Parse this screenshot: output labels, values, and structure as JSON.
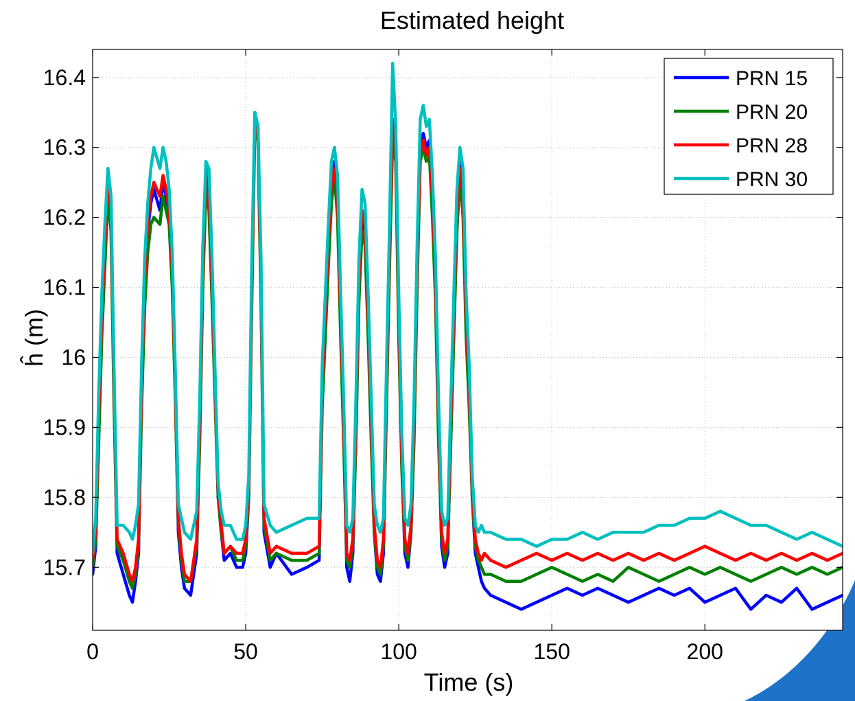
{
  "chart_data": {
    "type": "line",
    "title": "Estimated height",
    "xlabel": "Time (s)",
    "ylabel": "ĥ (m)",
    "xlim": [
      0,
      245
    ],
    "ylim": [
      15.61,
      16.44
    ],
    "xticks": [
      0,
      50,
      100,
      150,
      200
    ],
    "xtick_labels": [
      "0",
      "50",
      "100",
      "150",
      "200"
    ],
    "yticks": [
      15.7,
      15.8,
      15.9,
      16.0,
      16.1,
      16.2,
      16.3,
      16.4
    ],
    "ytick_labels": [
      "15.7",
      "15.8",
      "15.9",
      "16",
      "16.1",
      "16.2",
      "16.3",
      "16.4"
    ],
    "grid": true,
    "legend_position": "top-right",
    "x": [
      0,
      1,
      2,
      3,
      4,
      5,
      6,
      7,
      8,
      10,
      12,
      13,
      14,
      15,
      16,
      17,
      18,
      19,
      20,
      22,
      23,
      24,
      25,
      26,
      27,
      28,
      29,
      30,
      32,
      34,
      35,
      36,
      37,
      38,
      39,
      40,
      41,
      42,
      43,
      45,
      47,
      49,
      50,
      51,
      52,
      53,
      54,
      55,
      56,
      58,
      60,
      65,
      70,
      74,
      75,
      76,
      77,
      78,
      79,
      80,
      81,
      82,
      83,
      84,
      85,
      86,
      87,
      88,
      89,
      90,
      91,
      92,
      93,
      94,
      95,
      96,
      97,
      98,
      99,
      100,
      101,
      102,
      103,
      104,
      105,
      106,
      107,
      108,
      109,
      110,
      111,
      112,
      113,
      114,
      115,
      116,
      117,
      118,
      119,
      120,
      121,
      122,
      123,
      124,
      125,
      126,
      127,
      128,
      130,
      135,
      140,
      145,
      150,
      155,
      160,
      165,
      170,
      175,
      180,
      185,
      190,
      195,
      200,
      205,
      210,
      215,
      220,
      225,
      230,
      235,
      240,
      245
    ],
    "series": [
      {
        "name": "PRN 15",
        "color": "#0000ff",
        "values": [
          15.69,
          15.73,
          15.9,
          16.05,
          16.15,
          16.26,
          16.2,
          15.95,
          15.72,
          15.69,
          15.66,
          15.65,
          15.68,
          15.72,
          15.95,
          16.1,
          16.18,
          16.22,
          16.24,
          16.21,
          16.25,
          16.23,
          16.2,
          16.12,
          15.95,
          15.75,
          15.7,
          15.67,
          15.66,
          15.72,
          15.9,
          16.12,
          16.26,
          16.23,
          16.1,
          15.95,
          15.8,
          15.75,
          15.71,
          15.72,
          15.7,
          15.7,
          15.72,
          15.8,
          16.1,
          16.35,
          16.33,
          16.1,
          15.75,
          15.7,
          15.72,
          15.69,
          15.7,
          15.71,
          15.95,
          16.05,
          16.15,
          16.24,
          16.28,
          16.22,
          16.05,
          15.9,
          15.7,
          15.68,
          15.72,
          15.9,
          16.1,
          16.2,
          16.18,
          16.05,
          15.9,
          15.75,
          15.69,
          15.68,
          15.72,
          15.95,
          16.15,
          16.33,
          16.3,
          16.05,
          15.85,
          15.72,
          15.7,
          15.75,
          15.9,
          16.12,
          16.3,
          16.32,
          16.3,
          16.31,
          16.22,
          16.1,
          15.9,
          15.73,
          15.7,
          15.72,
          15.9,
          16.05,
          16.2,
          16.28,
          16.22,
          16.05,
          15.95,
          15.8,
          15.72,
          15.7,
          15.68,
          15.67,
          15.66,
          15.65,
          15.64,
          15.65,
          15.66,
          15.67,
          15.66,
          15.67,
          15.66,
          15.65,
          15.66,
          15.67,
          15.66,
          15.67,
          15.65,
          15.66,
          15.67,
          15.64,
          15.66,
          15.65,
          15.67,
          15.64,
          15.65,
          15.66
        ]
      },
      {
        "name": "PRN 20",
        "color": "#008000",
        "values": [
          15.7,
          15.74,
          15.88,
          16.03,
          16.13,
          16.23,
          16.18,
          15.93,
          15.73,
          15.71,
          15.68,
          15.67,
          15.69,
          15.73,
          15.93,
          16.07,
          16.15,
          16.19,
          16.2,
          16.19,
          16.23,
          16.21,
          16.19,
          16.1,
          15.94,
          15.76,
          15.71,
          15.68,
          15.68,
          15.73,
          15.88,
          16.1,
          16.24,
          16.21,
          16.08,
          15.94,
          15.8,
          15.75,
          15.72,
          15.73,
          15.71,
          15.71,
          15.73,
          15.8,
          16.08,
          16.33,
          16.31,
          16.08,
          15.76,
          15.71,
          15.72,
          15.71,
          15.71,
          15.72,
          15.93,
          16.03,
          16.13,
          16.22,
          16.26,
          16.2,
          16.03,
          15.88,
          15.71,
          15.7,
          15.73,
          15.88,
          16.08,
          16.18,
          16.16,
          16.03,
          15.88,
          15.75,
          15.7,
          15.69,
          15.73,
          15.93,
          16.13,
          16.31,
          16.28,
          16.03,
          15.84,
          15.73,
          15.71,
          15.75,
          15.88,
          16.1,
          16.28,
          16.3,
          16.28,
          16.29,
          16.2,
          16.08,
          15.88,
          15.74,
          15.71,
          15.73,
          15.88,
          16.03,
          16.18,
          16.26,
          16.2,
          16.03,
          15.93,
          15.8,
          15.73,
          15.71,
          15.7,
          15.69,
          15.69,
          15.68,
          15.68,
          15.69,
          15.7,
          15.69,
          15.68,
          15.69,
          15.68,
          15.7,
          15.69,
          15.68,
          15.69,
          15.7,
          15.69,
          15.7,
          15.69,
          15.68,
          15.69,
          15.7,
          15.69,
          15.7,
          15.69,
          15.7
        ]
      },
      {
        "name": "PRN 28",
        "color": "#ff0000",
        "values": [
          15.71,
          15.75,
          15.92,
          16.06,
          16.16,
          16.25,
          16.21,
          15.96,
          15.74,
          15.72,
          15.69,
          15.68,
          15.7,
          15.74,
          15.96,
          16.11,
          16.19,
          16.23,
          16.25,
          16.23,
          16.26,
          16.24,
          16.21,
          16.13,
          15.96,
          15.77,
          15.72,
          15.69,
          15.68,
          15.74,
          15.91,
          16.13,
          16.27,
          16.24,
          16.11,
          15.96,
          15.81,
          15.76,
          15.72,
          15.73,
          15.72,
          15.72,
          15.74,
          15.81,
          16.11,
          16.34,
          16.32,
          16.11,
          15.77,
          15.72,
          15.73,
          15.72,
          15.72,
          15.73,
          15.96,
          16.06,
          16.16,
          16.25,
          16.27,
          16.23,
          16.06,
          15.91,
          15.72,
          15.71,
          15.74,
          15.91,
          16.11,
          16.21,
          16.19,
          16.06,
          15.91,
          15.76,
          15.71,
          15.7,
          15.74,
          15.96,
          16.16,
          16.34,
          16.31,
          16.06,
          15.86,
          15.74,
          15.72,
          15.76,
          15.91,
          16.13,
          16.29,
          16.31,
          16.29,
          16.3,
          16.23,
          16.11,
          15.91,
          15.75,
          15.72,
          15.74,
          15.91,
          16.06,
          16.21,
          16.27,
          16.23,
          16.06,
          15.96,
          15.81,
          15.74,
          15.72,
          15.71,
          15.72,
          15.71,
          15.7,
          15.71,
          15.72,
          15.71,
          15.72,
          15.71,
          15.72,
          15.71,
          15.72,
          15.71,
          15.72,
          15.71,
          15.72,
          15.73,
          15.72,
          15.71,
          15.72,
          15.71,
          15.72,
          15.71,
          15.72,
          15.71,
          15.72
        ]
      },
      {
        "name": "PRN 30",
        "color": "#00bfbf",
        "values": [
          15.72,
          15.77,
          15.95,
          16.09,
          16.19,
          16.27,
          16.23,
          15.98,
          15.76,
          15.76,
          15.75,
          15.74,
          15.76,
          15.79,
          15.99,
          16.14,
          16.22,
          16.27,
          16.3,
          16.27,
          16.3,
          16.28,
          16.24,
          16.15,
          15.98,
          15.79,
          15.77,
          15.75,
          15.74,
          15.78,
          15.94,
          16.16,
          16.28,
          16.27,
          16.14,
          15.98,
          15.82,
          15.78,
          15.76,
          15.76,
          15.74,
          15.74,
          15.76,
          15.83,
          16.14,
          16.35,
          16.33,
          16.14,
          15.79,
          15.76,
          15.75,
          15.76,
          15.77,
          15.77,
          15.99,
          16.09,
          16.19,
          16.28,
          16.3,
          16.26,
          16.09,
          15.94,
          15.76,
          15.75,
          15.77,
          15.94,
          16.14,
          16.24,
          16.22,
          16.09,
          15.94,
          15.79,
          15.76,
          15.75,
          15.77,
          15.99,
          16.19,
          16.42,
          16.33,
          16.09,
          15.89,
          15.77,
          15.76,
          15.79,
          15.94,
          16.16,
          16.34,
          16.36,
          16.33,
          16.34,
          16.26,
          16.14,
          15.94,
          15.78,
          15.76,
          15.77,
          15.94,
          16.09,
          16.24,
          16.3,
          16.27,
          16.09,
          15.99,
          15.83,
          15.76,
          15.75,
          15.76,
          15.75,
          15.75,
          15.74,
          15.74,
          15.73,
          15.74,
          15.74,
          15.75,
          15.74,
          15.75,
          15.75,
          15.75,
          15.76,
          15.76,
          15.77,
          15.77,
          15.78,
          15.77,
          15.76,
          15.76,
          15.75,
          15.74,
          15.75,
          15.74,
          15.73
        ]
      }
    ]
  }
}
